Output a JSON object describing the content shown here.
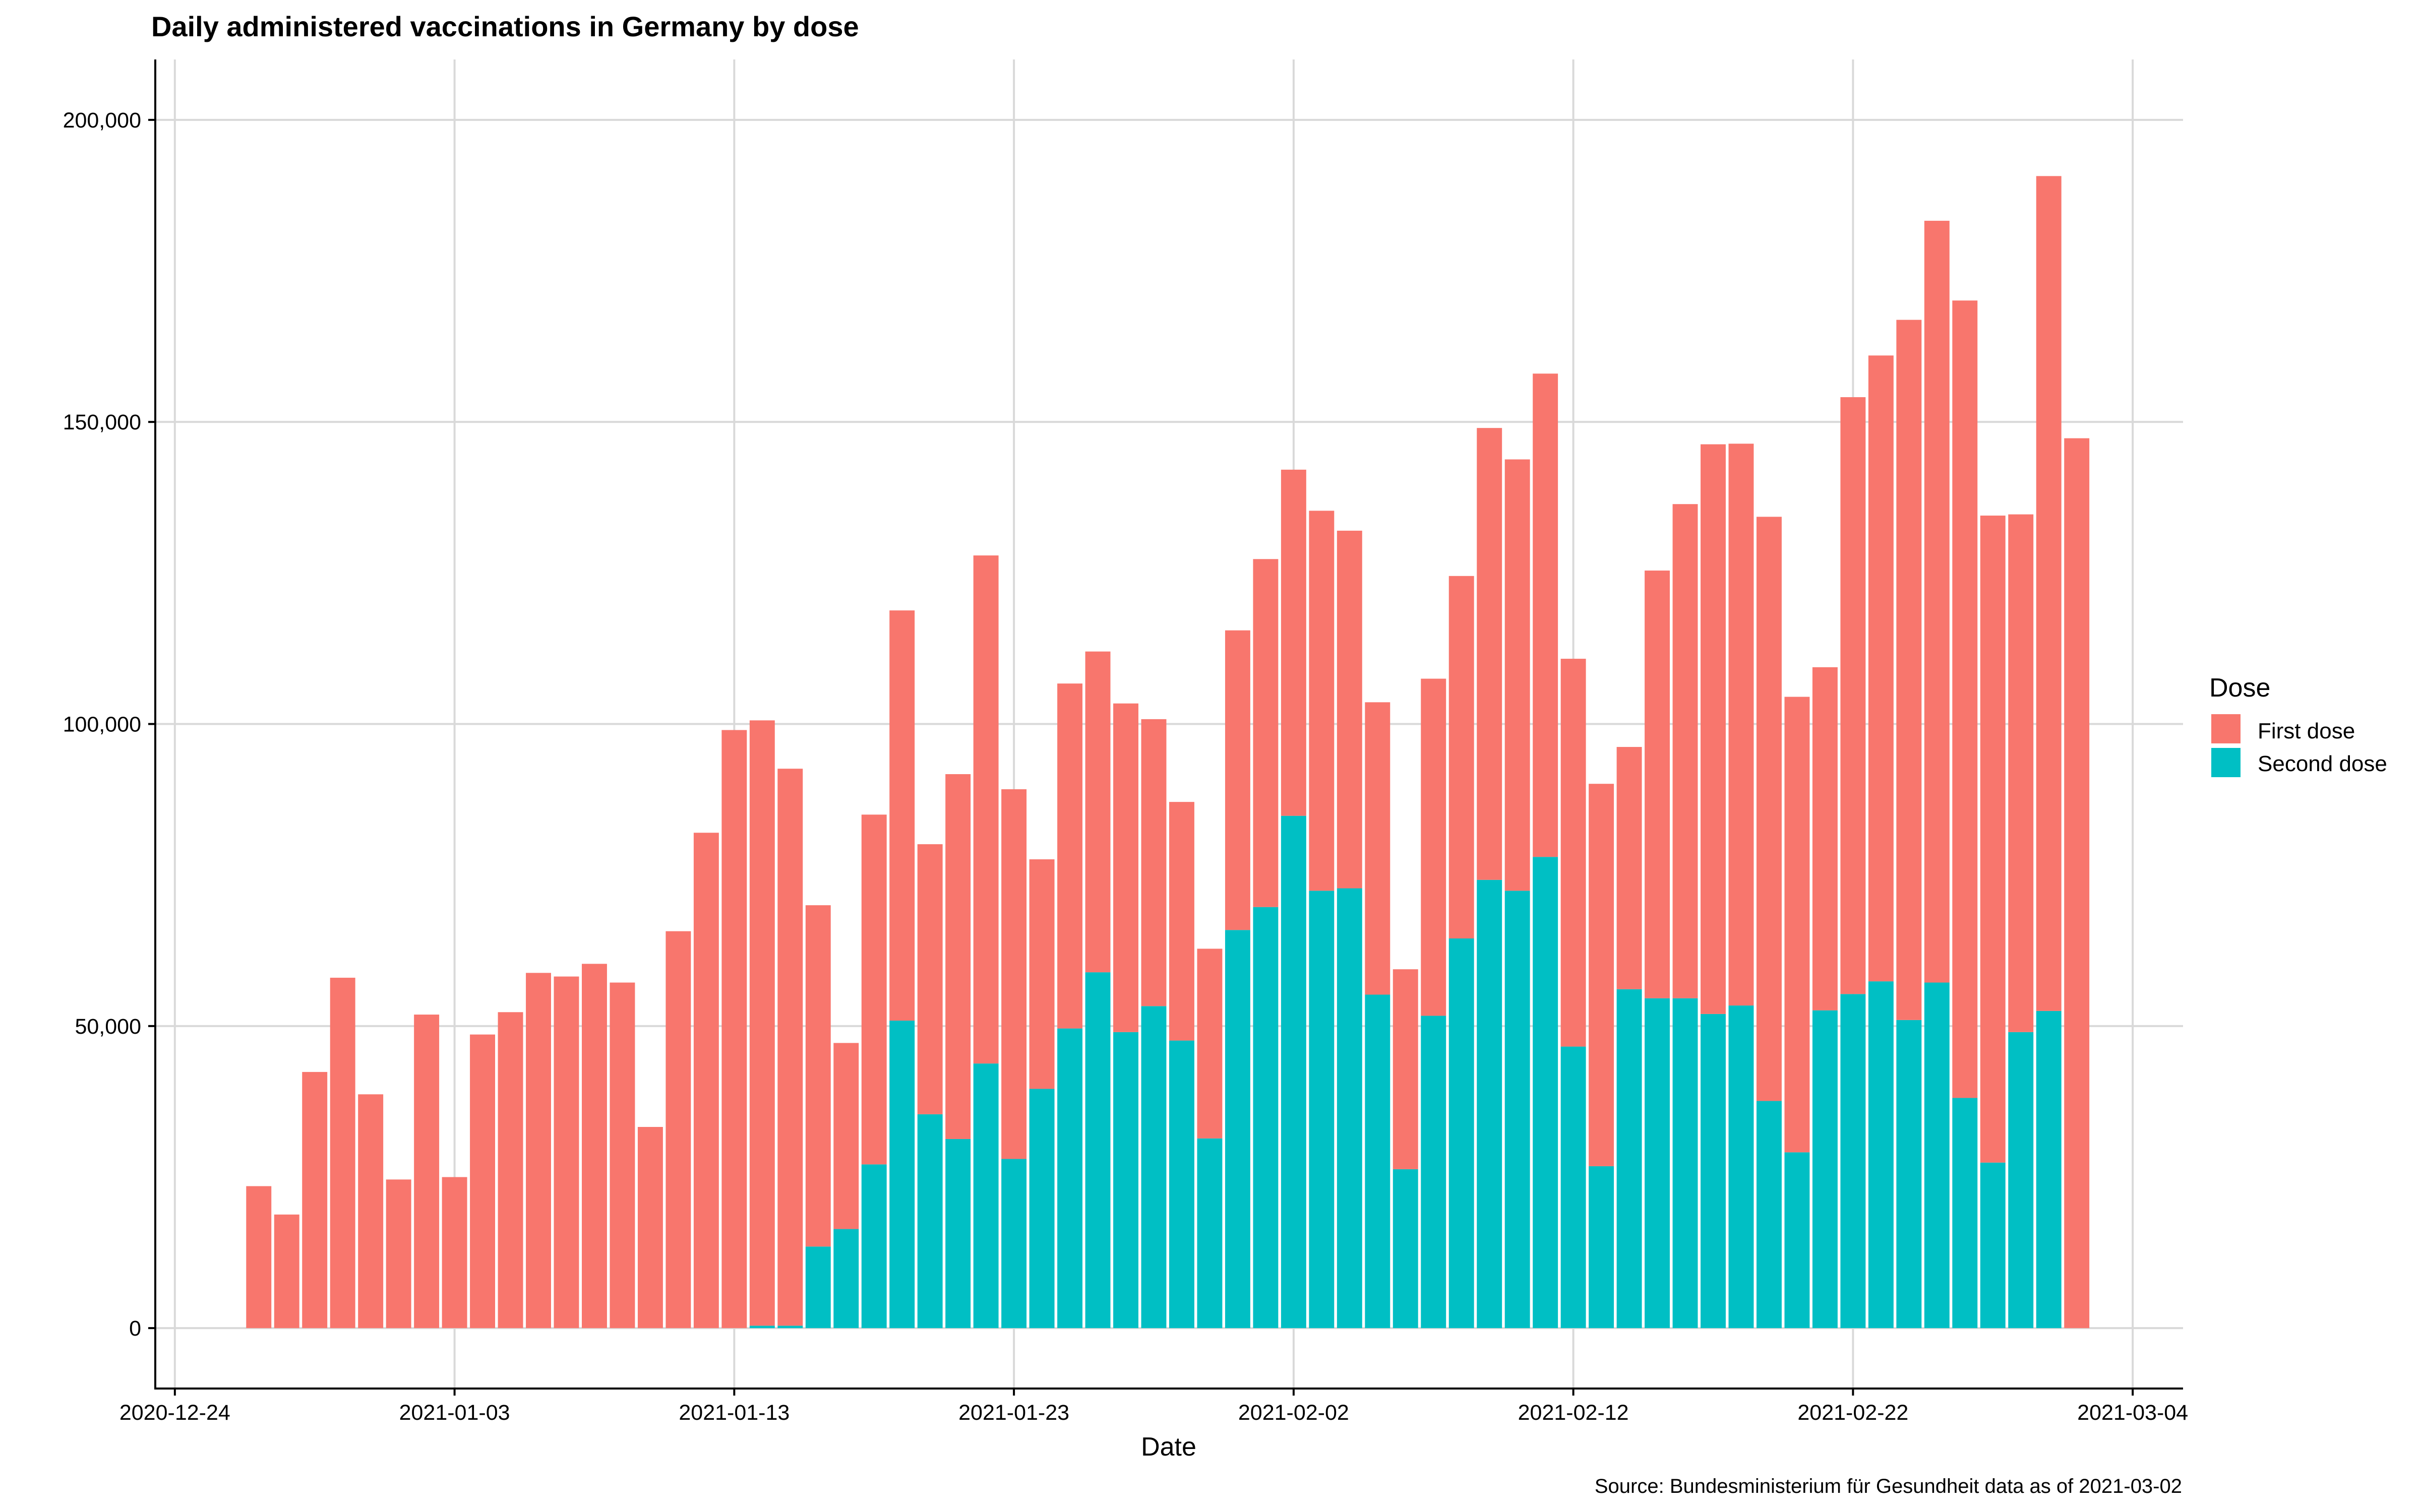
{
  "chart_data": {
    "type": "bar",
    "stacked": true,
    "title": "Daily administered vaccinations in Germany by dose",
    "xlabel": "Date",
    "ylabel": "",
    "caption": "Source: Bundesministerium für Gesundheit data as of 2021-03-02",
    "legend_title": "Dose",
    "legend_position": "right",
    "grid": true,
    "x_tick_labels": [
      "2020-12-24",
      "2021-01-03",
      "2021-01-13",
      "2021-01-23",
      "2021-02-02",
      "2021-02-12",
      "2021-02-22",
      "2021-03-04"
    ],
    "x_tick_day_index": [
      -3,
      7,
      17,
      27,
      37,
      47,
      57,
      67
    ],
    "y_tick_labels": [
      "0",
      "50,000",
      "100,000",
      "150,000",
      "200,000"
    ],
    "y_tick_values": [
      0,
      50000,
      100000,
      150000,
      200000
    ],
    "xlim_day_index": [
      -3.7,
      68.8
    ],
    "ylim": [
      -10000,
      210000
    ],
    "start_date": "2020-12-27",
    "categories": [
      "2020-12-27",
      "2020-12-28",
      "2020-12-29",
      "2020-12-30",
      "2020-12-31",
      "2021-01-01",
      "2021-01-02",
      "2021-01-03",
      "2021-01-04",
      "2021-01-05",
      "2021-01-06",
      "2021-01-07",
      "2021-01-08",
      "2021-01-09",
      "2021-01-10",
      "2021-01-11",
      "2021-01-12",
      "2021-01-13",
      "2021-01-14",
      "2021-01-15",
      "2021-01-16",
      "2021-01-17",
      "2021-01-18",
      "2021-01-19",
      "2021-01-20",
      "2021-01-21",
      "2021-01-22",
      "2021-01-23",
      "2021-01-24",
      "2021-01-25",
      "2021-01-26",
      "2021-01-27",
      "2021-01-28",
      "2021-01-29",
      "2021-01-30",
      "2021-01-31",
      "2021-02-01",
      "2021-02-02",
      "2021-02-03",
      "2021-02-04",
      "2021-02-05",
      "2021-02-06",
      "2021-02-07",
      "2021-02-08",
      "2021-02-09",
      "2021-02-10",
      "2021-02-11",
      "2021-02-12",
      "2021-02-13",
      "2021-02-14",
      "2021-02-15",
      "2021-02-16",
      "2021-02-17",
      "2021-02-18",
      "2021-02-19",
      "2021-02-20",
      "2021-02-21",
      "2021-02-22",
      "2021-02-23",
      "2021-02-24",
      "2021-02-25",
      "2021-02-26",
      "2021-02-27",
      "2021-02-28",
      "2021-03-01",
      "2021-03-02"
    ],
    "series": [
      {
        "name": "First dose",
        "color": "#F8766D",
        "values": [
          23500,
          18800,
          42400,
          58000,
          38700,
          24600,
          51900,
          25000,
          48600,
          52300,
          58800,
          58200,
          60300,
          57200,
          33300,
          65700,
          82000,
          99000,
          100200,
          92200,
          56500,
          30800,
          57900,
          67900,
          44700,
          60400,
          84100,
          61200,
          38000,
          57100,
          53100,
          54400,
          47500,
          39500,
          31400,
          49600,
          57600,
          57300,
          62900,
          59200,
          48400,
          33100,
          55800,
          60000,
          74800,
          71400,
          80000,
          64200,
          63300,
          40100,
          70800,
          81800,
          94300,
          93000,
          96700,
          75400,
          56800,
          98800,
          103600,
          115900,
          126100,
          132000,
          107100,
          85700,
          138200,
          147300
        ]
      },
      {
        "name": "Second dose",
        "color": "#00BFC4",
        "values": [
          0,
          0,
          0,
          0,
          0,
          0,
          0,
          0,
          0,
          0,
          0,
          0,
          0,
          0,
          0,
          0,
          0,
          0,
          400,
          400,
          13500,
          16400,
          27100,
          50900,
          35400,
          31300,
          43800,
          28000,
          39600,
          49600,
          58900,
          49000,
          53300,
          47600,
          31400,
          65900,
          69700,
          84800,
          72400,
          72800,
          55200,
          26300,
          51700,
          64500,
          74200,
          72400,
          78000,
          46600,
          26800,
          56100,
          54600,
          54600,
          52000,
          53400,
          37600,
          29100,
          52600,
          55300,
          57400,
          51000,
          57200,
          38100,
          27400,
          49000,
          52500,
          0
        ]
      }
    ]
  }
}
